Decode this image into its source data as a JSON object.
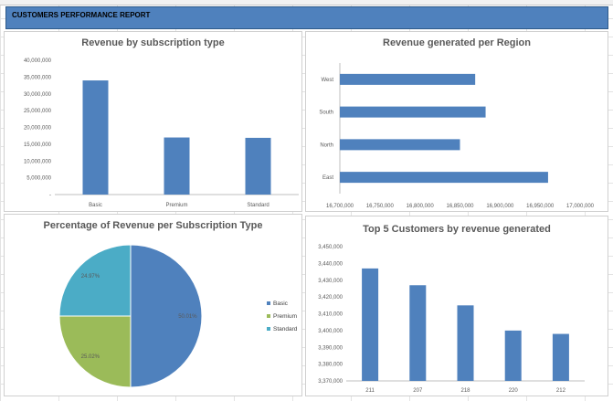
{
  "report_title": "CUSTOMERS PERFORMANCE REPORT",
  "chart_data": [
    {
      "type": "bar",
      "title": "Revenue by subscription type",
      "categories": [
        "Basic",
        "Premium",
        "Standard"
      ],
      "values": [
        34000000,
        17000000,
        16900000
      ],
      "ylim": [
        0,
        40000000
      ],
      "yticks": [
        0,
        5000000,
        10000000,
        15000000,
        20000000,
        25000000,
        30000000,
        35000000,
        40000000
      ],
      "ytick_labels": [
        "-",
        "5,000,000",
        "10,000,000",
        "15,000,000",
        "20,000,000",
        "25,000,000",
        "30,000,000",
        "35,000,000",
        "40,000,000"
      ],
      "color": "#4f81bd",
      "grid": false
    },
    {
      "type": "bar",
      "orientation": "horizontal",
      "title": "Revenue generated per Region",
      "categories": [
        "West",
        "South",
        "North",
        "East"
      ],
      "values": [
        16869000,
        16882000,
        16850000,
        16960000
      ],
      "xlim": [
        16700000,
        17000000
      ],
      "xticks": [
        16700000,
        16750000,
        16800000,
        16850000,
        16900000,
        16950000,
        17000000
      ],
      "xtick_labels": [
        "16,700,000",
        "16,750,000",
        "16,800,000",
        "16,850,000",
        "16,900,000",
        "16,950,000",
        "17,000,000"
      ],
      "color": "#4f81bd",
      "grid": false
    },
    {
      "type": "pie",
      "title": "Percentage of Revenue per Subscription Type",
      "labels": [
        "Basic",
        "Premium",
        "Standard"
      ],
      "values": [
        50.01,
        25.02,
        24.97
      ],
      "value_labels": [
        "50.01%",
        "25.02%",
        "24.97%"
      ],
      "colors": [
        "#4f81bd",
        "#9bbb59",
        "#4bacc6"
      ],
      "legend": "right"
    },
    {
      "type": "bar",
      "title": "Top 5 Customers by revenue generated",
      "categories": [
        "211",
        "207",
        "218",
        "220",
        "212"
      ],
      "values": [
        3437000,
        3427000,
        3415000,
        3400000,
        3398000
      ],
      "ylim": [
        3370000,
        3450000
      ],
      "yticks": [
        3370000,
        3380000,
        3390000,
        3400000,
        3410000,
        3420000,
        3430000,
        3440000,
        3450000
      ],
      "ytick_labels": [
        "3,370,000",
        "3,380,000",
        "3,390,000",
        "3,400,000",
        "3,410,000",
        "3,420,000",
        "3,430,000",
        "3,440,000",
        "3,450,000"
      ],
      "color": "#4f81bd",
      "grid": false
    }
  ]
}
